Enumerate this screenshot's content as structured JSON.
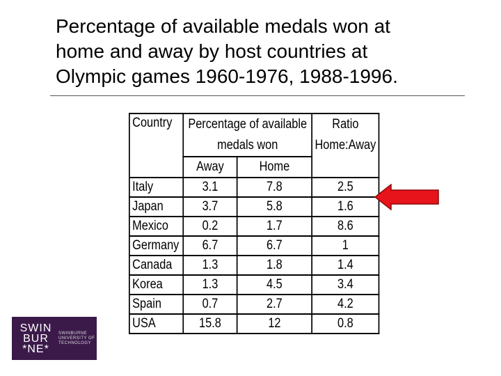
{
  "slide": {
    "title_lines": [
      "Percentage of available medals won at",
      "home and away by host countries at",
      "Olympic games 1960-1976, 1988-1996."
    ]
  },
  "table": {
    "headers": {
      "country": "Country",
      "pct_line1": "Percentage of available",
      "pct_line2": "medals won",
      "ratio_line1": "Ratio",
      "ratio_line2": "Home:Away",
      "away": "Away",
      "home": "Home"
    },
    "rows": [
      {
        "country": "Italy",
        "away": "3.1",
        "home": "7.8",
        "ratio": "2.5"
      },
      {
        "country": "Japan",
        "away": "3.7",
        "home": "5.8",
        "ratio": "1.6"
      },
      {
        "country": "Mexico",
        "away": "0.2",
        "home": "1.7",
        "ratio": "8.6"
      },
      {
        "country": "Germany",
        "away": "6.7",
        "home": "6.7",
        "ratio": "1"
      },
      {
        "country": "Canada",
        "away": "1.3",
        "home": "1.8",
        "ratio": "1.4"
      },
      {
        "country": "Korea",
        "away": "1.3",
        "home": "4.5",
        "ratio": "3.4"
      },
      {
        "country": "Spain",
        "away": "0.7",
        "home": "2.7",
        "ratio": "4.2"
      },
      {
        "country": "USA",
        "away": "15.8",
        "home": "12",
        "ratio": "0.8"
      }
    ]
  },
  "arrow": {
    "color": "#e8141b",
    "points_to_row": "Italy"
  },
  "logo": {
    "mark_lines": [
      "SWIN",
      "BUR",
      "*NE*"
    ],
    "text_lines": [
      "SWINBURNE",
      "UNIVERSITY OF",
      "TECHNOLOGY"
    ],
    "background": "#3b1a4a"
  }
}
